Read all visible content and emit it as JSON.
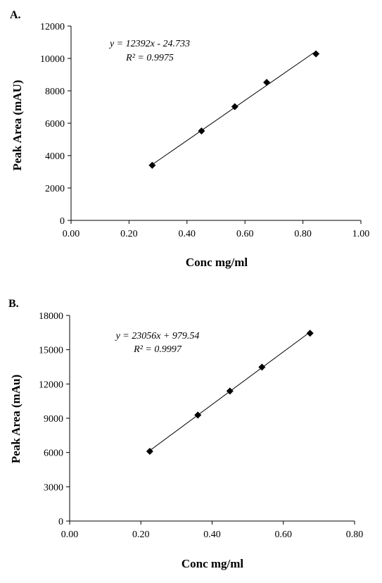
{
  "chart_data": [
    {
      "type": "scatter",
      "panel_label": "A.",
      "xlabel": "Conc mg/ml",
      "ylabel": "Peak Area (mAU)",
      "xlim": [
        0,
        1
      ],
      "ylim": [
        0,
        12000
      ],
      "x_ticks": [
        "0.00",
        "0.20",
        "0.40",
        "0.60",
        "0.80",
        "1.00"
      ],
      "y_ticks": [
        "0",
        "2000",
        "4000",
        "6000",
        "8000",
        "10000",
        "12000"
      ],
      "x_tick_values": [
        0,
        0.2,
        0.4,
        0.6,
        0.8,
        1.0
      ],
      "y_tick_values": [
        0,
        2000,
        4000,
        6000,
        8000,
        10000,
        12000
      ],
      "grid": false,
      "marker": "diamond",
      "series": [
        {
          "x": [
            0.28,
            0.45,
            0.565,
            0.675,
            0.845
          ],
          "y": [
            3400,
            5520,
            7020,
            8520,
            10280
          ]
        }
      ],
      "trendline": {
        "slope": 12392,
        "intercept": -24.733,
        "x_range": [
          0.28,
          0.845
        ]
      },
      "annotations": [
        "y = 12392x - 24.733",
        "R² = 0.9975"
      ]
    },
    {
      "type": "scatter",
      "panel_label": "B.",
      "xlabel": "Conc mg/ml",
      "ylabel": "Peak Area (mAu)",
      "xlim": [
        0,
        0.8
      ],
      "ylim": [
        0,
        18000
      ],
      "x_ticks": [
        "0.00",
        "0.20",
        "0.40",
        "0.60",
        "0.80"
      ],
      "y_ticks": [
        "0",
        "3000",
        "6000",
        "9000",
        "12000",
        "15000",
        "18000"
      ],
      "x_tick_values": [
        0,
        0.2,
        0.4,
        0.6,
        0.8
      ],
      "y_tick_values": [
        0,
        3000,
        6000,
        9000,
        12000,
        15000,
        18000
      ],
      "grid": false,
      "marker": "diamond",
      "series": [
        {
          "x": [
            0.225,
            0.36,
            0.45,
            0.54,
            0.675
          ],
          "y": [
            6100,
            9280,
            11380,
            13480,
            16440
          ]
        }
      ],
      "trendline": {
        "slope": 23056,
        "intercept": 979.54,
        "x_range": [
          0.225,
          0.675
        ]
      },
      "annotations": [
        "y = 23056x + 979.54",
        "R² = 0.9997"
      ]
    }
  ]
}
